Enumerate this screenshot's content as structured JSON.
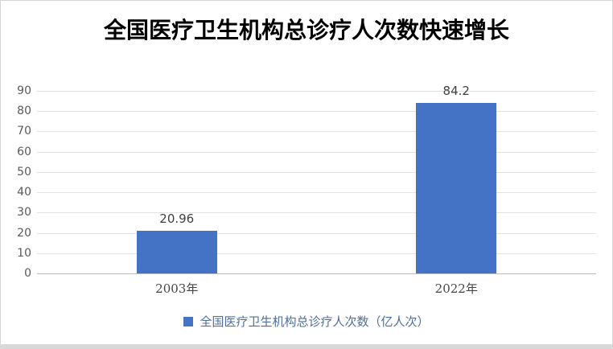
{
  "chart": {
    "title": "全国医疗卫生机构总诊疗人次数快速增长"
  },
  "chart_data": {
    "type": "bar",
    "title": "全国医疗卫生机构总诊疗人次数快速增长",
    "categories": [
      "2003年",
      "2022年"
    ],
    "values": [
      20.96,
      84.2
    ],
    "value_labels": [
      "20.96",
      "84.2"
    ],
    "series_name": "全国医疗卫生机构总诊疗人次数（亿人次）",
    "xlabel": "",
    "ylabel": "",
    "ylim": [
      0,
      90
    ],
    "y_ticks": [
      0,
      10,
      20,
      30,
      40,
      50,
      60,
      70,
      80,
      90
    ],
    "grid": "horizontal",
    "legend_position": "bottom",
    "data_labels_shown": true,
    "colors": {
      "bar": "#4472C4",
      "gridline": "#e2e2e2",
      "axis_line": "#bfbfbf",
      "tick_label": "#595959",
      "value_label": "#404040",
      "category_label": "#464646",
      "legend_text": "#4e6d9c",
      "title_text": "#000000",
      "border": "#d5d5d5"
    }
  }
}
